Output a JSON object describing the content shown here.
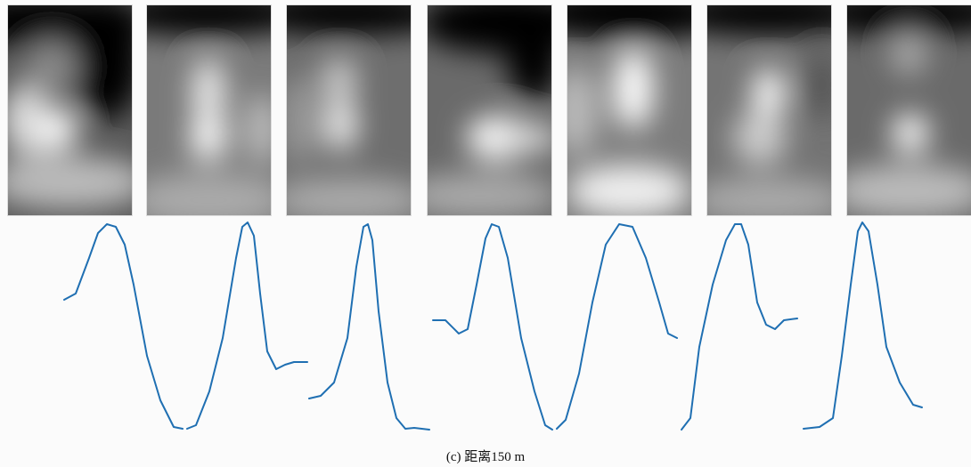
{
  "caption": "(c) 距离150 m"
}
